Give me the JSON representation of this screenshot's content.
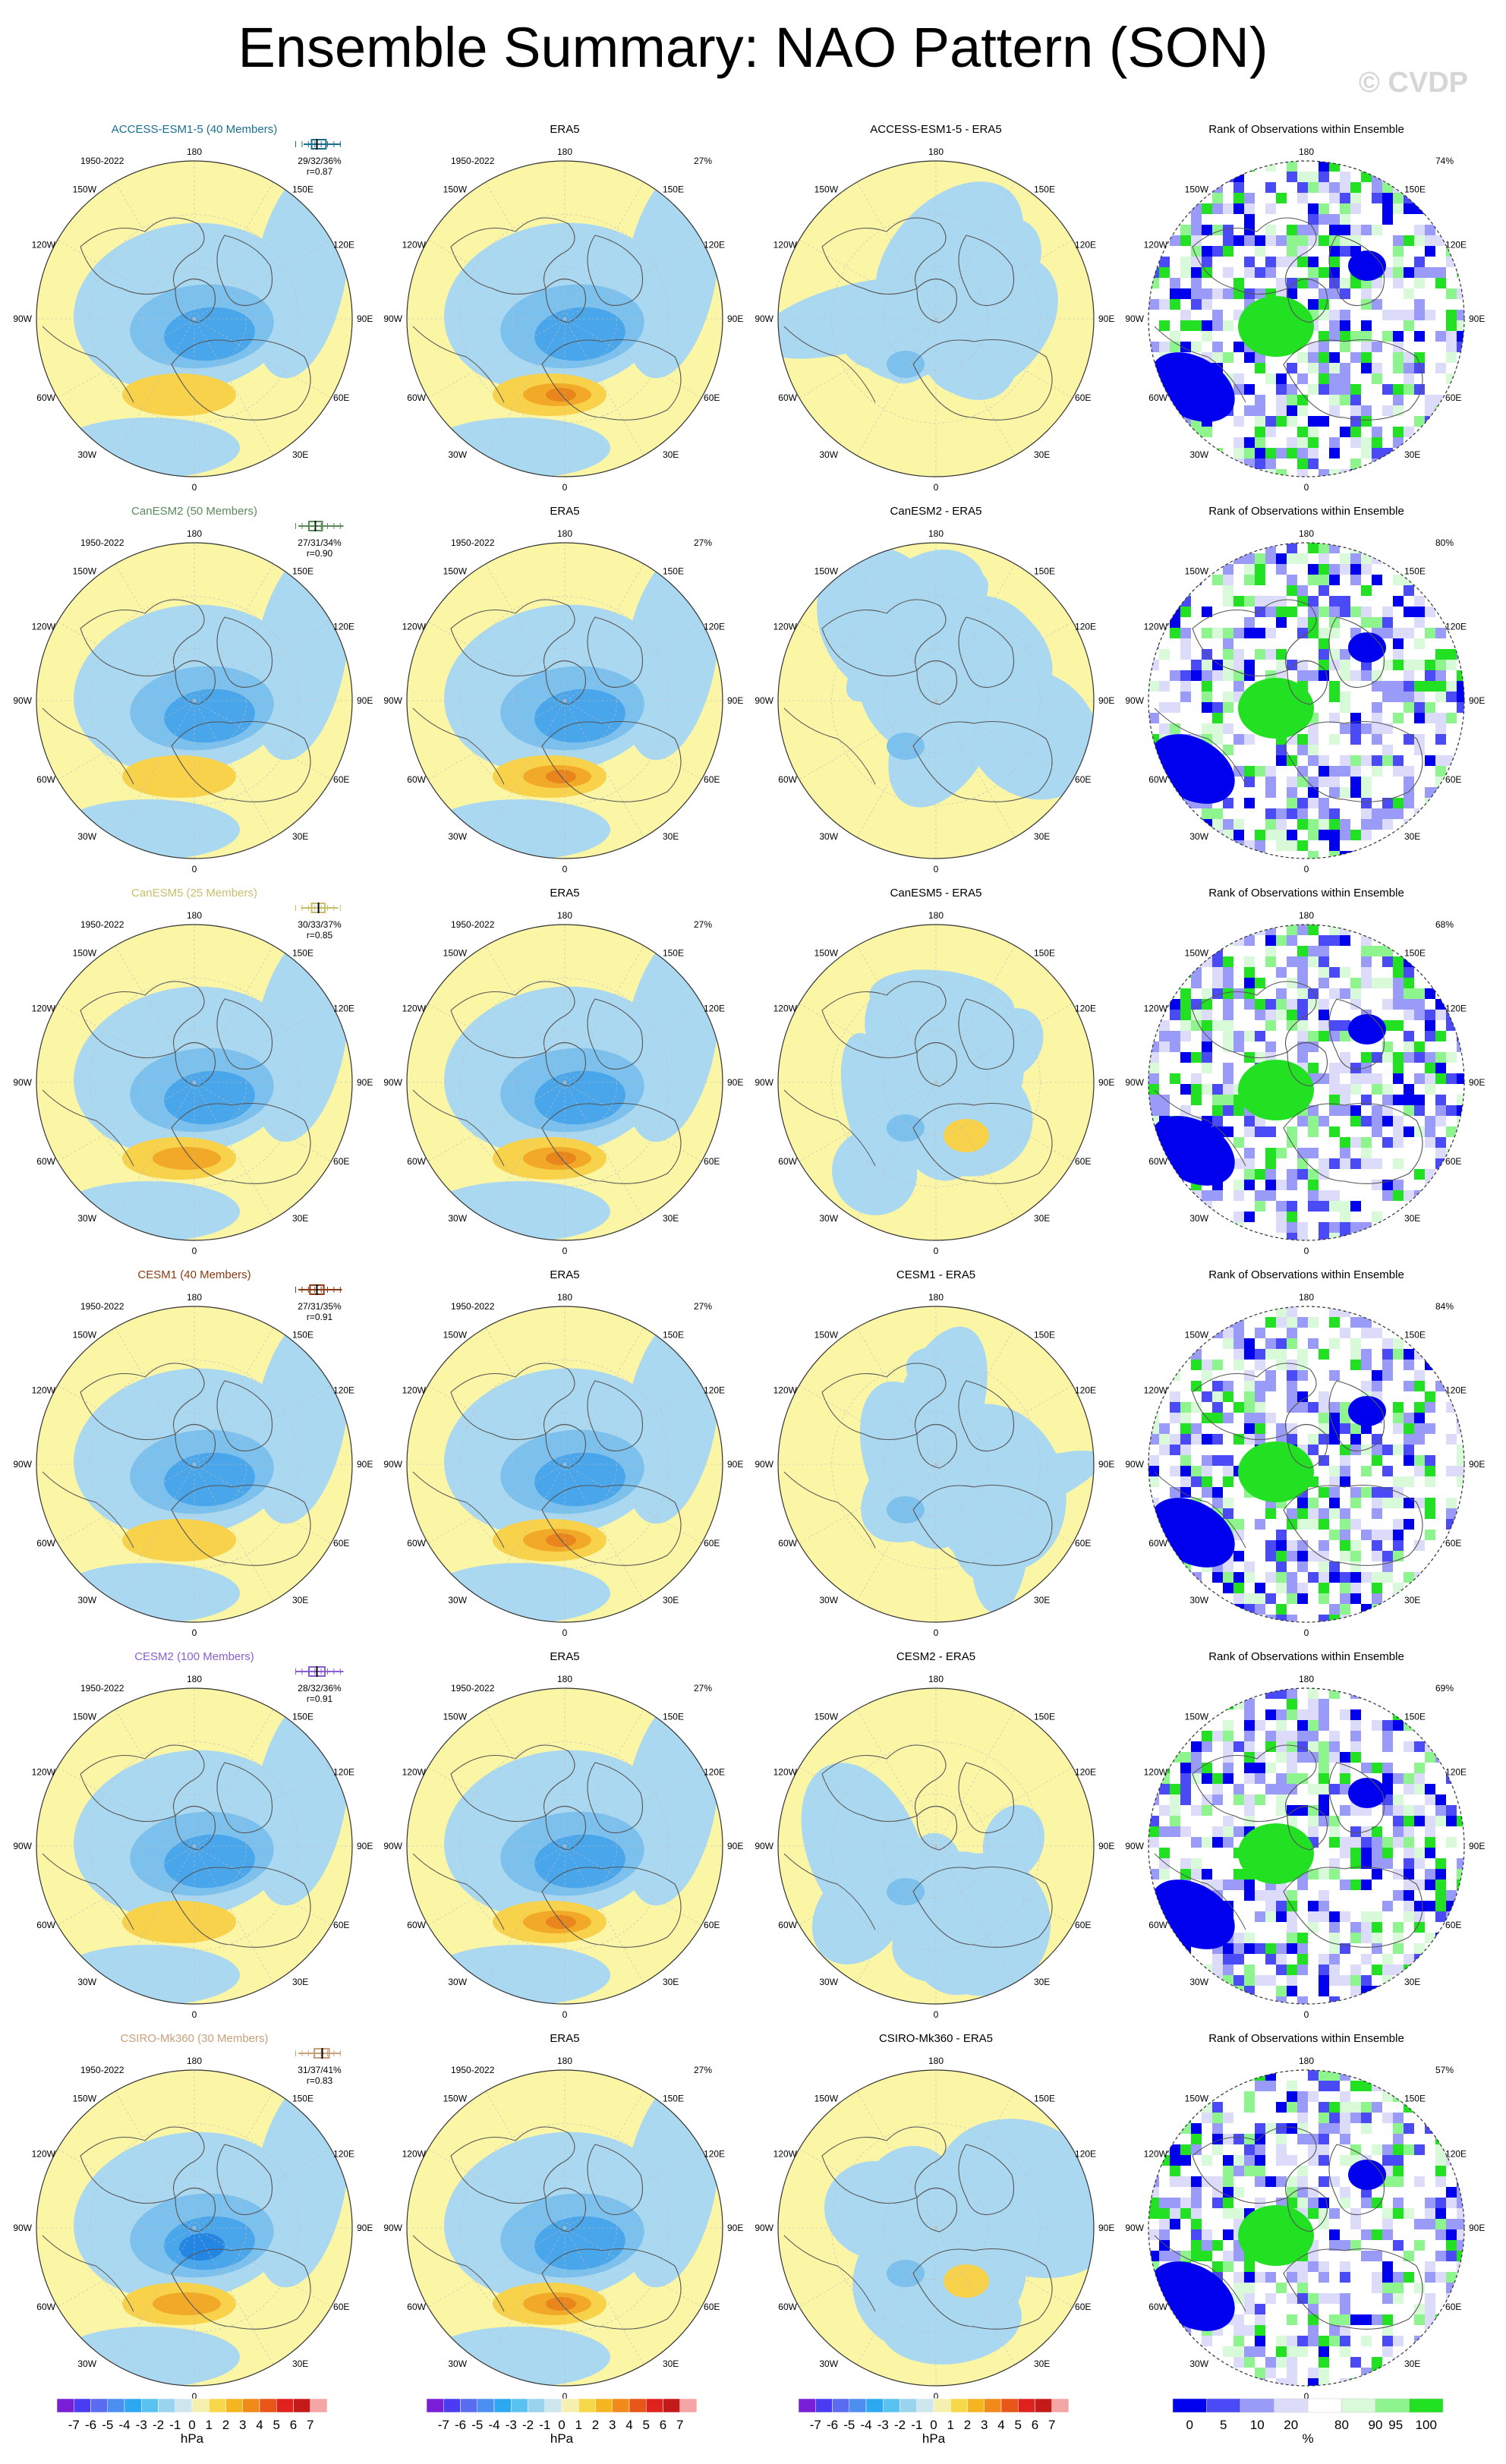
{
  "title": "Ensemble Summary: NAO Pattern (SON)",
  "copyright": "© CVDP",
  "chart_data": {
    "type": "heatmap",
    "description_of_panels": "Polar stereographic maps of NAO pattern (sea-level pressure regression)",
    "map_labels": {
      "top": "180",
      "bottom": "0",
      "upper_left": "150W",
      "upper_right": "150E",
      "left_upper": "120W",
      "right_upper": "120E",
      "left_mid": "90W",
      "right_mid": "90E",
      "left_lower": "60W",
      "right_lower": "60E",
      "lower_left": "30W",
      "lower_right": "30E"
    },
    "period": "1950-2022",
    "obs_name": "ERA5",
    "obs_explained_variance": "27%",
    "rank_title": "Rank of Observations within Ensemble",
    "rows": [
      {
        "model": "ACCESS-ESM1-5",
        "title": "ACCESS-ESM1-5 (40 Members)",
        "color": "#1a6f8f",
        "pct": "29/32/36%",
        "r": "r=0.87",
        "diff_title": "ACCESS-ESM1-5 - ERA5",
        "rank_pct": "74%",
        "box": [
          0.2,
          0.35,
          0.45,
          0.62,
          0.9
        ]
      },
      {
        "model": "CanESM2",
        "title": "CanESM2 (50 Members)",
        "color": "#5a8a5a",
        "pct": "27/31/34%",
        "r": "r=0.90",
        "diff_title": "CanESM2 - ERA5",
        "rank_pct": "80%",
        "box": [
          0.1,
          0.3,
          0.42,
          0.55,
          0.95
        ]
      },
      {
        "model": "CanESM5",
        "title": "CanESM5 (25 Members)",
        "color": "#c9bf6a",
        "pct": "30/33/37%",
        "r": "r=0.85",
        "diff_title": "CanESM5 - ERA5",
        "rank_pct": "68%",
        "box": [
          0.15,
          0.35,
          0.48,
          0.6,
          0.85
        ]
      },
      {
        "model": "CESM1",
        "title": "CESM1 (40 Members)",
        "color": "#8b3a14",
        "pct": "27/31/35%",
        "r": "r=0.91",
        "diff_title": "CESM1 - ERA5",
        "rank_pct": "84%",
        "box": [
          0.1,
          0.32,
          0.45,
          0.58,
          0.92
        ]
      },
      {
        "model": "CESM2",
        "title": "CESM2 (100 Members)",
        "color": "#8a5fd0",
        "pct": "28/32/36%",
        "r": "r=0.91",
        "diff_title": "CESM2 - ERA5",
        "rank_pct": "69%",
        "box": [
          0.05,
          0.3,
          0.45,
          0.6,
          0.95
        ]
      },
      {
        "model": "CSIRO-Mk360",
        "title": "CSIRO-Mk360 (30 Members)",
        "color": "#c8a07a",
        "pct": "31/37/41%",
        "r": "r=0.83",
        "diff_title": "CSIRO-Mk360 - ERA5",
        "rank_pct": "57%",
        "box": [
          0.1,
          0.4,
          0.55,
          0.68,
          0.9
        ]
      }
    ],
    "colorbar_hpa": {
      "labels": [
        "-7",
        "-6",
        "-5",
        "-4",
        "-3",
        "-2",
        "-1",
        "0",
        "1",
        "2",
        "3",
        "4",
        "5",
        "6",
        "7"
      ],
      "colors": [
        "#7b1fd6",
        "#4a3cf2",
        "#5a6cf0",
        "#4d8ff0",
        "#2fa8f2",
        "#5ac2f0",
        "#9ad3ee",
        "#cfe6ee",
        "#f6f0b0",
        "#f6d84a",
        "#f4b521",
        "#f08a1a",
        "#e8561a",
        "#e0221e",
        "#c41a1a",
        "#f4a6a6"
      ],
      "units": "hPa"
    },
    "colorbar_rank": {
      "labels": [
        "0",
        "5",
        "10",
        "20",
        "80",
        "90",
        "95",
        "100"
      ],
      "colors": [
        "#0000ee",
        "#4a4af6",
        "#9a9af8",
        "#dcdcfa",
        "#ffffff",
        "#d8fad8",
        "#8ef58e",
        "#22e022"
      ],
      "units": "%"
    },
    "palette": {
      "yellow": "#fbf5a6",
      "light_blue": "#aad8f0",
      "blue1": "#7cc0ee",
      "blue2": "#4aa6ea",
      "blue3": "#2486e2",
      "orange1": "#f8d24a",
      "orange2": "#f2a928",
      "orange3": "#e8851c"
    }
  }
}
